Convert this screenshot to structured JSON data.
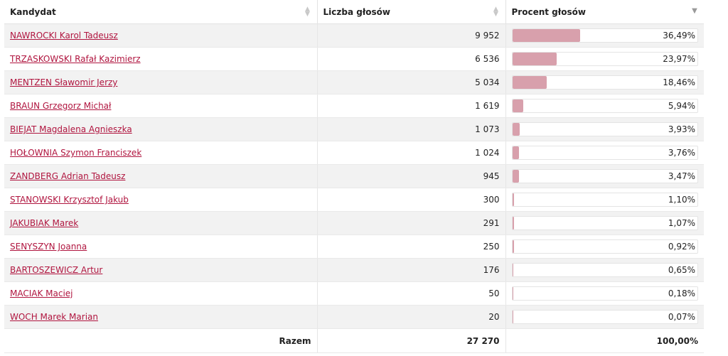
{
  "table": {
    "headers": {
      "candidate": "Kandydat",
      "votes": "Liczba głosów",
      "percent": "Procent głosów"
    },
    "rows": [
      {
        "name": "NAWROCKI Karol Tadeusz",
        "votes": "9 952",
        "percent": "36,49%",
        "share": 36.49
      },
      {
        "name": "TRZASKOWSKI Rafał Kazimierz",
        "votes": "6 536",
        "percent": "23,97%",
        "share": 23.97
      },
      {
        "name": "MENTZEN Sławomir Jerzy",
        "votes": "5 034",
        "percent": "18,46%",
        "share": 18.46
      },
      {
        "name": "BRAUN Grzegorz Michał",
        "votes": "1 619",
        "percent": "5,94%",
        "share": 5.94
      },
      {
        "name": "BIEJAT Magdalena Agnieszka",
        "votes": "1 073",
        "percent": "3,93%",
        "share": 3.93
      },
      {
        "name": "HOŁOWNIA Szymon Franciszek",
        "votes": "1 024",
        "percent": "3,76%",
        "share": 3.76
      },
      {
        "name": "ZANDBERG Adrian Tadeusz",
        "votes": "945",
        "percent": "3,47%",
        "share": 3.47
      },
      {
        "name": "STANOWSKI Krzysztof Jakub",
        "votes": "300",
        "percent": "1,10%",
        "share": 1.1
      },
      {
        "name": "JAKUBIAK Marek",
        "votes": "291",
        "percent": "1,07%",
        "share": 1.07
      },
      {
        "name": "SENYSZYN Joanna",
        "votes": "250",
        "percent": "0,92%",
        "share": 0.92
      },
      {
        "name": "BARTOSZEWICZ Artur",
        "votes": "176",
        "percent": "0,65%",
        "share": 0.65
      },
      {
        "name": "MACIAK Maciej",
        "votes": "50",
        "percent": "0,18%",
        "share": 0.18
      },
      {
        "name": "WOCH Marek Marian",
        "votes": "20",
        "percent": "0,07%",
        "share": 0.07
      }
    ],
    "total": {
      "label": "Razem",
      "votes": "27 270",
      "percent": "100,00%"
    },
    "sort": {
      "column": "percent",
      "direction": "descending",
      "inactive_icon": "sort-both-icon",
      "active_icon": "sort-descending-icon"
    }
  },
  "colors": {
    "link": "#b0153f",
    "bar": "#d8a0ac",
    "row_alt": "#f2f2f2"
  }
}
